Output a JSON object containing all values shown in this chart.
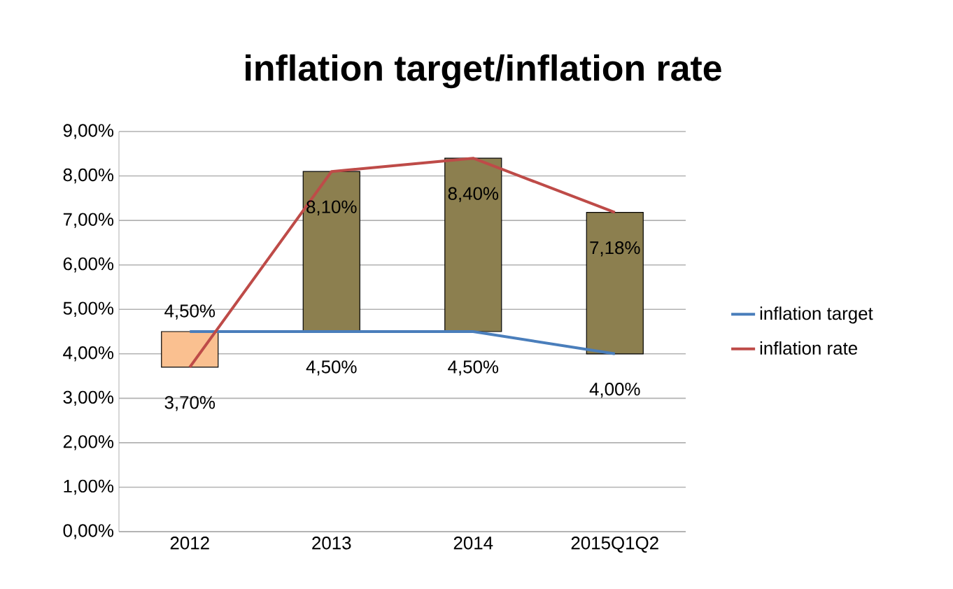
{
  "chart_data": {
    "type": "line",
    "title": "inflation target/inflation rate",
    "categories": [
      "2012",
      "2013",
      "2014",
      "2015Q1Q2"
    ],
    "series": [
      {
        "name": null,
        "type": "bar",
        "base": [
          4.5,
          4.5,
          4.5,
          4.0
        ],
        "values": [
          -0.8,
          3.6,
          3.9,
          3.18
        ],
        "colors": [
          "#fac090",
          "#8c7f4f",
          "#8c7f4f",
          "#8c7f4f"
        ]
      },
      {
        "name": "inflation target",
        "color": "#4a7ebb",
        "values": [
          4.5,
          4.5,
          4.5,
          4.0
        ],
        "value_labels": [
          "4,50%",
          "4,50%",
          "4,50%",
          "4,00%"
        ]
      },
      {
        "name": "inflation rate",
        "color": "#be4b48",
        "values": [
          3.7,
          8.1,
          8.4,
          7.18
        ],
        "value_labels": [
          "3,70%",
          "8,10%",
          "8,40%",
          "7,18%"
        ]
      }
    ],
    "ylim": [
      0,
      9
    ],
    "yticks": [
      {
        "value": 0,
        "label": "0,00%"
      },
      {
        "value": 1,
        "label": "1,00%"
      },
      {
        "value": 2,
        "label": "2,00%"
      },
      {
        "value": 3,
        "label": "3,00%"
      },
      {
        "value": 4,
        "label": "4,00%"
      },
      {
        "value": 5,
        "label": "5,00%"
      },
      {
        "value": 6,
        "label": "6,00%"
      },
      {
        "value": 7,
        "label": "7,00%"
      },
      {
        "value": 8,
        "label": "8,00%"
      },
      {
        "value": 9,
        "label": "9,00%"
      }
    ],
    "grid": "y",
    "legend": "right",
    "marker": "none",
    "line_style": "solid"
  }
}
